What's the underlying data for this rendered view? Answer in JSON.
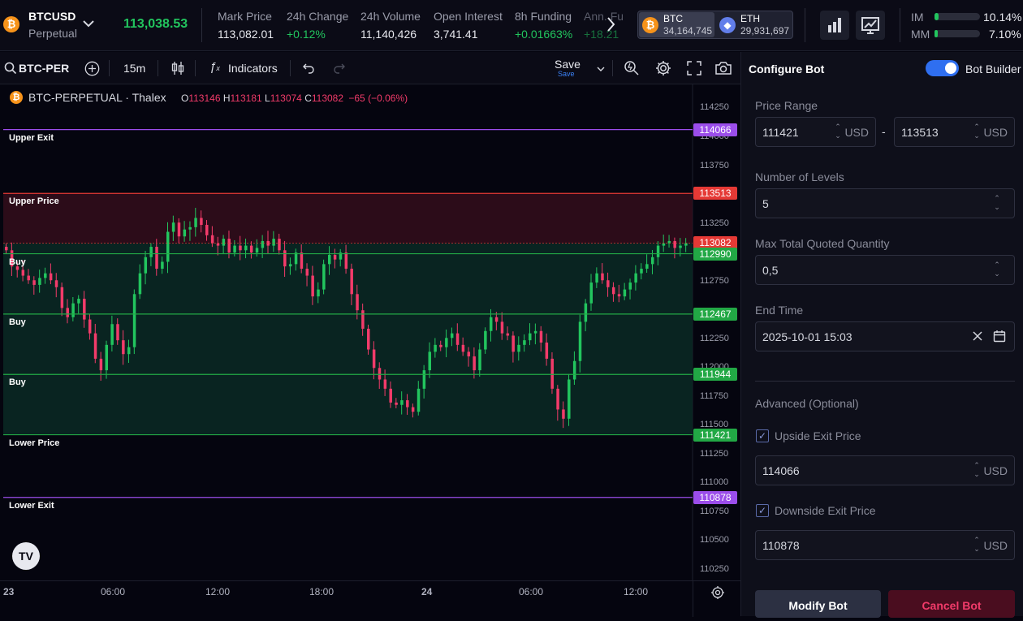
{
  "header": {
    "symbol": "BTCUSD",
    "instrument": "Perpetual",
    "last_price": "113,038.53",
    "stats": [
      {
        "label": "Mark Price",
        "value": "113,082.01",
        "positive": false
      },
      {
        "label": "24h Change",
        "value": "+0.12%",
        "positive": true
      },
      {
        "label": "24h Volume",
        "value": "11,140,426",
        "positive": false
      },
      {
        "label": "Open Interest",
        "value": "3,741.41",
        "positive": false
      },
      {
        "label": "8h Funding",
        "value": "+0.01663%",
        "positive": true
      },
      {
        "label": "Ann. Fu",
        "value": "+18.21",
        "positive": true
      }
    ],
    "tickers": [
      {
        "name": "BTC",
        "value": "34,164,745"
      },
      {
        "name": "ETH",
        "value": "29,931,697"
      }
    ],
    "margin": {
      "im_label": "IM",
      "im_value": "10.14%",
      "im_fraction": 0.1014,
      "mm_label": "MM",
      "mm_value": "7.10%",
      "mm_fraction": 0.071
    }
  },
  "toolbar": {
    "symbol": "BTC-PER",
    "interval": "15m",
    "indicators_label": "Indicators",
    "save_label": "Save",
    "save_sub": "Save"
  },
  "chart_legend": {
    "title": "BTC-PERPETUAL · Thalex",
    "o_label": "O",
    "o_value": "113146",
    "h_label": "H",
    "h_value": "113181",
    "l_label": "L",
    "l_value": "113074",
    "c_label": "C",
    "c_value": "113082",
    "change": "−65 (−0.06%)"
  },
  "chart_data": {
    "type": "candlestick",
    "yticks": [
      "114250",
      "114000",
      "113750",
      "113250",
      "112750",
      "112250",
      "112000",
      "111750",
      "111500",
      "111250",
      "111000",
      "110750",
      "110500",
      "110250"
    ],
    "xticks": [
      "23",
      "06:00",
      "12:00",
      "18:00",
      "24",
      "06:00",
      "12:00"
    ],
    "levels": [
      {
        "label": "Upper Exit",
        "price": "114066",
        "color": "#9b4dea"
      },
      {
        "label": "Upper Price",
        "price": "113513",
        "color": "#e53935"
      },
      {
        "label": "",
        "price": "113082",
        "color": "#e53935"
      },
      {
        "label": "Buy",
        "price": "112990",
        "color": "#22a845"
      },
      {
        "label": "Buy",
        "price": "112467",
        "color": "#22a845"
      },
      {
        "label": "Buy",
        "price": "111944",
        "color": "#22a845"
      },
      {
        "label": "Lower Price",
        "price": "111421",
        "color": "#22a845"
      },
      {
        "label": "Lower Exit",
        "price": "110878",
        "color": "#9b4dea"
      }
    ],
    "closes": [
      113020,
      112880,
      112850,
      112800,
      112760,
      112720,
      112780,
      112820,
      112760,
      112700,
      112520,
      112440,
      112560,
      112600,
      112420,
      112300,
      112080,
      111980,
      112200,
      112380,
      112240,
      112120,
      112180,
      112640,
      112820,
      112960,
      113050,
      112860,
      112920,
      113180,
      113260,
      113140,
      113200,
      113220,
      113300,
      113240,
      113150,
      113080,
      113060,
      113120,
      113000,
      113060,
      113020,
      113060,
      113000,
      113040,
      113100,
      113060,
      113120,
      113020,
      112880,
      112900,
      113000,
      112860,
      112800,
      112620,
      112680,
      112900,
      112980,
      112940,
      113000,
      112860,
      112640,
      112500,
      112340,
      112160,
      112000,
      111900,
      111820,
      111700,
      111680,
      111720,
      111660,
      111620,
      111820,
      111980,
      112140,
      112200,
      112180,
      112260,
      112300,
      112200,
      112140,
      112100,
      111980,
      112160,
      112320,
      112440,
      112400,
      112300,
      112280,
      112140,
      112200,
      112240,
      112300,
      112320,
      112220,
      112080,
      111820,
      111640,
      111560,
      111900,
      112060,
      112400,
      112560,
      112740,
      112820,
      112760,
      112700,
      112640,
      112620,
      112680,
      112740,
      112820,
      112860,
      112900,
      112960,
      113060,
      113080,
      113100,
      113040,
      113060,
      113082
    ]
  },
  "panel": {
    "title": "Configure Bot",
    "toggle_label": "Bot Builder",
    "price_range_label": "Price Range",
    "price_low": "111421",
    "price_high": "113513",
    "range_sep": "-",
    "unit": "USD",
    "levels_label": "Number of Levels",
    "levels_value": "5",
    "qty_label": "Max Total Quoted Quantity",
    "qty_value": "0,5",
    "end_time_label": "End Time",
    "end_time_value": "2025-10-01 15:03",
    "advanced_label": "Advanced (Optional)",
    "upside_label": "Upside Exit Price",
    "upside_value": "114066",
    "downside_label": "Downside Exit Price",
    "downside_value": "110878",
    "modify_label": "Modify Bot",
    "cancel_label": "Cancel Bot"
  },
  "colors": {
    "up": "#22c55e",
    "down": "#f23b6a",
    "accent": "#2f6ff0"
  }
}
